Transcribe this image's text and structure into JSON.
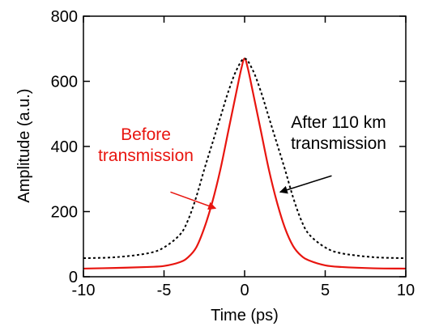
{
  "chart_data": {
    "type": "line",
    "xlabel": "Time (ps)",
    "ylabel": "Amplitude (a.u.)",
    "xlim": [
      -10,
      10
    ],
    "ylim": [
      0,
      800
    ],
    "xticks": [
      -10,
      -5,
      0,
      5,
      10
    ],
    "yticks": [
      0,
      200,
      400,
      600,
      800
    ],
    "xtick_labels": [
      "-10",
      "-5",
      "0",
      "5",
      "10"
    ],
    "ytick_labels": [
      "0",
      "200",
      "400",
      "600",
      "800"
    ],
    "grid": false,
    "series": [
      {
        "label": "Before transmission",
        "color": "#e8150f",
        "style": "solid",
        "x": [
          -10,
          -8,
          -6,
          -5,
          -4,
          -3.5,
          -3,
          -2.5,
          -2,
          -1.5,
          -1,
          -0.5,
          -0.2,
          0,
          0.2,
          0.5,
          1,
          1.5,
          2,
          2.5,
          3,
          3.5,
          4,
          5,
          6,
          8,
          10
        ],
        "y": [
          25,
          27,
          30,
          33,
          45,
          60,
          90,
          150,
          230,
          330,
          450,
          570,
          640,
          670,
          640,
          570,
          450,
          330,
          230,
          150,
          95,
          65,
          50,
          35,
          30,
          26,
          25
        ]
      },
      {
        "label": "After 110 km transmission",
        "color": "#000000",
        "style": "dashed",
        "x": [
          -10,
          -8,
          -6,
          -5,
          -4,
          -3.5,
          -3,
          -2.5,
          -2,
          -1.5,
          -1,
          -0.5,
          0,
          0.5,
          1,
          1.5,
          2,
          2.5,
          3,
          3.5,
          4,
          5,
          6,
          8,
          10
        ],
        "y": [
          57,
          60,
          72,
          90,
          130,
          175,
          245,
          330,
          410,
          490,
          570,
          635,
          670,
          635,
          570,
          490,
          410,
          330,
          245,
          175,
          130,
          90,
          72,
          60,
          57
        ]
      }
    ],
    "annotations": [
      {
        "lines": [
          "Before",
          "transmission"
        ],
        "color": "#e8150f",
        "arrow_from": [
          -4.6,
          260
        ],
        "arrow_to": [
          -1.8,
          210
        ]
      },
      {
        "lines": [
          "After 110 km",
          "transmission"
        ],
        "color": "#000000",
        "arrow_from": [
          5.4,
          310
        ],
        "arrow_to": [
          2.2,
          260
        ]
      }
    ]
  }
}
